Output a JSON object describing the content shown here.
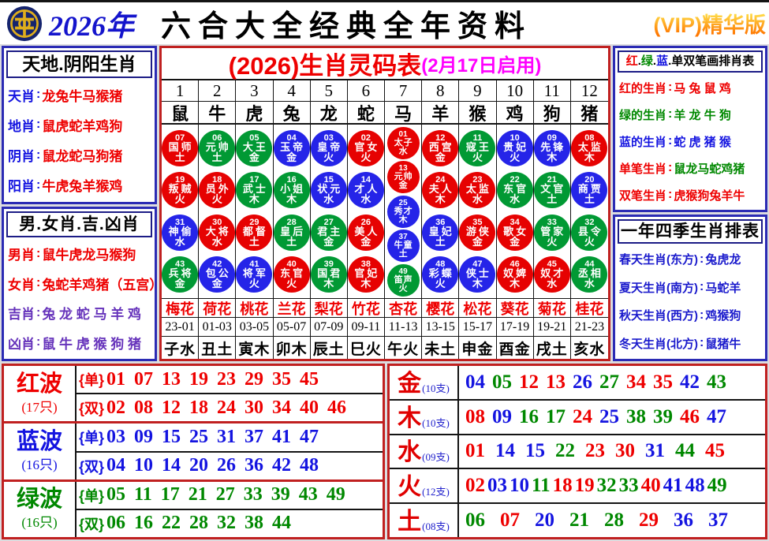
{
  "colors": {
    "r": "#ee0000",
    "g": "#008800",
    "b": "#1414e0",
    "purple": "#6633bb",
    "magenta": "#ff00ff",
    "ball": {
      "red": "#e60202",
      "green": "#019934",
      "blue": "#2524e8"
    }
  },
  "header": {
    "year": "2026年",
    "title": "六合大全经典全年资料",
    "vip": "(VIP)精华版",
    "logo": "gold-emblem-on-navy-circle"
  },
  "left_top": {
    "title": "天地.阴阳生肖",
    "rows": [
      {
        "label": "天肖",
        "value": "龙兔牛马猴猪",
        "lc": "#1414e0",
        "vc": "#ee0000"
      },
      {
        "label": "地肖",
        "value": "鼠虎蛇羊鸡狗",
        "lc": "#1414e0",
        "vc": "#ee0000"
      },
      {
        "label": "阴肖",
        "value": "鼠龙蛇马狗猪",
        "lc": "#1414e0",
        "vc": "#ee0000"
      },
      {
        "label": "阳肖",
        "value": "牛虎兔羊猴鸡",
        "lc": "#1414e0",
        "vc": "#ee0000"
      }
    ]
  },
  "left_bottom": {
    "title": "男.女肖.吉.凶肖",
    "rows": [
      {
        "label": "男肖",
        "value": "鼠牛虎龙马猴狗",
        "lc": "#ee0000",
        "vc": "#ee0000"
      },
      {
        "label": "女肖",
        "value": "兔蛇羊鸡猪（五宫）",
        "lc": "#ee0000",
        "vc": "#ee0000"
      },
      {
        "label": "吉肖",
        "value": "兔 龙 蛇 马 羊 鸡",
        "lc": "#6633bb",
        "vc": "#6633bb"
      },
      {
        "label": "凶肖",
        "value": "鼠 牛 虎 猴 狗 猪",
        "lc": "#6633bb",
        "vc": "#6633bb"
      }
    ]
  },
  "center": {
    "title": "(2026)生肖灵码表",
    "subtitle": "(2月17日启用)",
    "numbers": [
      "1",
      "2",
      "3",
      "4",
      "5",
      "6",
      "7",
      "8",
      "9",
      "10",
      "11",
      "12"
    ],
    "zodiacs": [
      "鼠",
      "牛",
      "虎",
      "兔",
      "龙",
      "蛇",
      "马",
      "羊",
      "猴",
      "鸡",
      "狗",
      "猪"
    ],
    "ball_columns": [
      [
        {
          "n": "07",
          "t": "国师",
          "e": "土",
          "c": "red"
        },
        {
          "n": "19",
          "t": "叛贼",
          "e": "火",
          "c": "red"
        },
        {
          "n": "31",
          "t": "神偷",
          "e": "水",
          "c": "blue"
        },
        {
          "n": "43",
          "t": "兵将",
          "e": "金",
          "c": "green"
        }
      ],
      [
        {
          "n": "06",
          "t": "元帅",
          "e": "土",
          "c": "green"
        },
        {
          "n": "18",
          "t": "员外",
          "e": "火",
          "c": "red"
        },
        {
          "n": "30",
          "t": "大将",
          "e": "水",
          "c": "red"
        },
        {
          "n": "42",
          "t": "包公",
          "e": "金",
          "c": "blue"
        }
      ],
      [
        {
          "n": "05",
          "t": "大王",
          "e": "金",
          "c": "green"
        },
        {
          "n": "17",
          "t": "武士",
          "e": "木",
          "c": "green"
        },
        {
          "n": "29",
          "t": "都督",
          "e": "土",
          "c": "red"
        },
        {
          "n": "41",
          "t": "将军",
          "e": "火",
          "c": "blue"
        }
      ],
      [
        {
          "n": "04",
          "t": "玉帝",
          "e": "金",
          "c": "blue"
        },
        {
          "n": "16",
          "t": "小姐",
          "e": "木",
          "c": "green"
        },
        {
          "n": "28",
          "t": "皇后",
          "e": "土",
          "c": "green"
        },
        {
          "n": "40",
          "t": "东官",
          "e": "火",
          "c": "red"
        }
      ],
      [
        {
          "n": "03",
          "t": "皇帝",
          "e": "火",
          "c": "blue"
        },
        {
          "n": "15",
          "t": "状元",
          "e": "水",
          "c": "blue"
        },
        {
          "n": "27",
          "t": "君主",
          "e": "金",
          "c": "green"
        },
        {
          "n": "39",
          "t": "国君",
          "e": "木",
          "c": "green"
        }
      ],
      [
        {
          "n": "02",
          "t": "官女",
          "e": "火",
          "c": "red"
        },
        {
          "n": "14",
          "t": "才人",
          "e": "水",
          "c": "blue"
        },
        {
          "n": "26",
          "t": "美人",
          "e": "金",
          "c": "red"
        },
        {
          "n": "38",
          "t": "官妃",
          "e": "木",
          "c": "red"
        }
      ],
      [
        {
          "n": "01",
          "t": "太子",
          "e": "水",
          "c": "red"
        },
        {
          "n": "13",
          "t": "元帅",
          "e": "金",
          "c": "red"
        },
        {
          "n": "25",
          "t": "秀才",
          "e": "木",
          "c": "blue"
        },
        {
          "n": "37",
          "t": "牛童",
          "e": "土",
          "c": "blue"
        },
        {
          "n": "49",
          "t": "笛声",
          "e": "火",
          "c": "green"
        }
      ],
      [
        {
          "n": "12",
          "t": "西宫",
          "e": "金",
          "c": "red"
        },
        {
          "n": "24",
          "t": "夫人",
          "e": "木",
          "c": "red"
        },
        {
          "n": "36",
          "t": "皇妃",
          "e": "土",
          "c": "blue"
        },
        {
          "n": "48",
          "t": "彩蝶",
          "e": "火",
          "c": "blue"
        }
      ],
      [
        {
          "n": "11",
          "t": "寇王",
          "e": "火",
          "c": "green"
        },
        {
          "n": "23",
          "t": "太监",
          "e": "水",
          "c": "red"
        },
        {
          "n": "35",
          "t": "游侠",
          "e": "金",
          "c": "red"
        },
        {
          "n": "47",
          "t": "侠士",
          "e": "木",
          "c": "blue"
        }
      ],
      [
        {
          "n": "10",
          "t": "贵妃",
          "e": "火",
          "c": "blue"
        },
        {
          "n": "22",
          "t": "东官",
          "e": "水",
          "c": "green"
        },
        {
          "n": "34",
          "t": "歌女",
          "e": "金",
          "c": "red"
        },
        {
          "n": "46",
          "t": "奴婢",
          "e": "木",
          "c": "red"
        }
      ],
      [
        {
          "n": "09",
          "t": "先锋",
          "e": "木",
          "c": "blue"
        },
        {
          "n": "21",
          "t": "文官",
          "e": "土",
          "c": "green"
        },
        {
          "n": "33",
          "t": "管家",
          "e": "火",
          "c": "green"
        },
        {
          "n": "45",
          "t": "奴才",
          "e": "水",
          "c": "red"
        }
      ],
      [
        {
          "n": "08",
          "t": "太监",
          "e": "木",
          "c": "red"
        },
        {
          "n": "20",
          "t": "商贾",
          "e": "土",
          "c": "blue"
        },
        {
          "n": "32",
          "t": "县令",
          "e": "火",
          "c": "green"
        },
        {
          "n": "44",
          "t": "丞相",
          "e": "水",
          "c": "green"
        }
      ]
    ],
    "flowers": [
      "梅花",
      "荷花",
      "桃花",
      "兰花",
      "梨花",
      "竹花",
      "杏花",
      "樱花",
      "松花",
      "葵花",
      "菊花",
      "桂花"
    ],
    "ranges": [
      "23-01",
      "01-03",
      "03-05",
      "05-07",
      "07-09",
      "09-11",
      "11-13",
      "13-15",
      "15-17",
      "17-19",
      "19-21",
      "21-23"
    ],
    "branches": [
      "子水",
      "丑土",
      "寅木",
      "卯木",
      "辰土",
      "巳火",
      "午火",
      "未土",
      "申金",
      "酉金",
      "戌土",
      "亥水"
    ]
  },
  "right_top": {
    "title_segments": [
      {
        "t": "红",
        "c": "#ee0000"
      },
      {
        "t": ".",
        "c": "#000000"
      },
      {
        "t": "绿",
        "c": "#008800"
      },
      {
        "t": ".",
        "c": "#000000"
      },
      {
        "t": "蓝",
        "c": "#1414e0"
      },
      {
        "t": ".",
        "c": "#000000"
      },
      {
        "t": "单双笔画排肖表",
        "c": "#000000"
      }
    ],
    "rows": [
      {
        "label": "红的生肖",
        "value": "马 兔 鼠 鸡",
        "lc": "#ee0000",
        "vc": "#ee0000"
      },
      {
        "label": "绿的生肖",
        "value": "羊 龙 牛 狗",
        "lc": "#008800",
        "vc": "#008800"
      },
      {
        "label": "蓝的生肖",
        "value": "蛇 虎 猪 猴",
        "lc": "#1414e0",
        "vc": "#1414e0"
      },
      {
        "label": "单笔生肖",
        "value": "鼠龙马蛇鸡猪",
        "lc": "#ee0000",
        "vc": "#008800"
      },
      {
        "label": "双笔生肖",
        "value": "虎猴狗兔羊牛",
        "lc": "#ee0000",
        "vc": "#ee0000"
      }
    ]
  },
  "right_bottom": {
    "title": "一年四季生肖排表",
    "rows": [
      {
        "label": "春天生肖(东方)",
        "value": "兔虎龙"
      },
      {
        "label": "夏天生肖(南方)",
        "value": "马蛇羊"
      },
      {
        "label": "秋天生肖(西方)",
        "value": "鸡猴狗"
      },
      {
        "label": "冬天生肖(北方)",
        "value": "鼠猪牛"
      }
    ]
  },
  "waves": {
    "odd_label": "{单}",
    "even_label": "{双}",
    "rows": [
      {
        "name": "红波",
        "count": "(17只)",
        "color": "#ee0000",
        "odd": "01 07 13 19 23 29 35 45",
        "even": "02 08 12 18 24 30 34 40 46"
      },
      {
        "name": "蓝波",
        "count": "(16只)",
        "color": "#1414e0",
        "odd": "03 09 15 25 31 37 41 47",
        "even": "04 10 14 20 26 36 42 48"
      },
      {
        "name": "绿波",
        "count": "(16只)",
        "color": "#008800",
        "odd": "05 11 17 21 27 33 39 43 49",
        "even": "06 16 22 28 32 38 44"
      }
    ]
  },
  "elements": [
    {
      "name": "金",
      "count": "(10支)",
      "numbers": [
        [
          "04",
          "b"
        ],
        [
          "05",
          "g"
        ],
        [
          "12",
          "r"
        ],
        [
          "13",
          "r"
        ],
        [
          "26",
          "b"
        ],
        [
          "27",
          "g"
        ],
        [
          "34",
          "r"
        ],
        [
          "35",
          "r"
        ],
        [
          "42",
          "b"
        ],
        [
          "43",
          "g"
        ]
      ]
    },
    {
      "name": "木",
      "count": "(10支)",
      "numbers": [
        [
          "08",
          "r"
        ],
        [
          "09",
          "b"
        ],
        [
          "16",
          "g"
        ],
        [
          "17",
          "g"
        ],
        [
          "24",
          "r"
        ],
        [
          "25",
          "b"
        ],
        [
          "38",
          "g"
        ],
        [
          "39",
          "g"
        ],
        [
          "46",
          "r"
        ],
        [
          "47",
          "b"
        ]
      ]
    },
    {
      "name": "水",
      "count": "(09支)",
      "numbers": [
        [
          "01",
          "r"
        ],
        [
          "14",
          "b"
        ],
        [
          "15",
          "b"
        ],
        [
          "22",
          "g"
        ],
        [
          "23",
          "r"
        ],
        [
          "30",
          "r"
        ],
        [
          "31",
          "b"
        ],
        [
          "44",
          "g"
        ],
        [
          "45",
          "r"
        ]
      ]
    },
    {
      "name": "火",
      "count": "(12支)",
      "numbers": [
        [
          "02",
          "r"
        ],
        [
          "03",
          "b"
        ],
        [
          "10",
          "b"
        ],
        [
          "11",
          "g"
        ],
        [
          "18",
          "r"
        ],
        [
          "19",
          "r"
        ],
        [
          "32",
          "g"
        ],
        [
          "33",
          "g"
        ],
        [
          "40",
          "r"
        ],
        [
          "41",
          "b"
        ],
        [
          "48",
          "b"
        ],
        [
          "49",
          "g"
        ]
      ]
    },
    {
      "name": "土",
      "count": "(08支)",
      "numbers": [
        [
          "06",
          "g"
        ],
        [
          "07",
          "r"
        ],
        [
          "20",
          "b"
        ],
        [
          "21",
          "g"
        ],
        [
          "28",
          "g"
        ],
        [
          "29",
          "r"
        ],
        [
          "36",
          "b"
        ],
        [
          "37",
          "b"
        ]
      ]
    }
  ]
}
